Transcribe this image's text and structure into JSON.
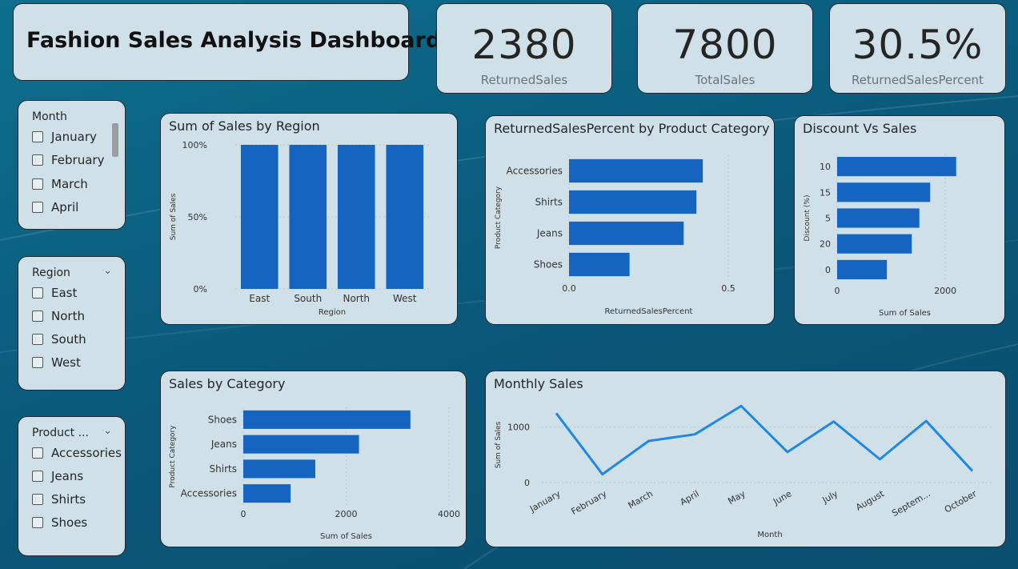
{
  "title": "Fashion Sales Analysis Dashboard",
  "kpis": [
    {
      "value": "2380",
      "label": "ReturnedSales"
    },
    {
      "value": "7800",
      "label": "TotalSales"
    },
    {
      "value": "30.5%",
      "label": "ReturnedSalesPercent"
    }
  ],
  "slicers": {
    "month": {
      "title": "Month",
      "items": [
        "January",
        "February",
        "March",
        "April"
      ]
    },
    "region": {
      "title": "Region",
      "items": [
        "East",
        "North",
        "South",
        "West"
      ]
    },
    "product": {
      "title": "Product ...",
      "items": [
        "Accessories",
        "Jeans",
        "Shirts",
        "Shoes"
      ]
    }
  },
  "colors": {
    "bar": "#1565c0",
    "line": "#1e88e5"
  },
  "chart_data": [
    {
      "id": "region",
      "type": "bar",
      "title": "Sum of Sales by Region",
      "categories": [
        "East",
        "South",
        "North",
        "West"
      ],
      "values": [
        100,
        100,
        100,
        100
      ],
      "yticks": [
        "0%",
        "50%",
        "100%"
      ],
      "ylim": [
        0,
        100
      ],
      "xlabel": "Region",
      "ylabel": "Sum of Sales"
    },
    {
      "id": "returned",
      "type": "bar",
      "orientation": "horizontal",
      "title": "ReturnedSalesPercent by Product Category",
      "categories": [
        "Accessories",
        "Shirts",
        "Jeans",
        "Shoes"
      ],
      "values": [
        0.42,
        0.4,
        0.36,
        0.19
      ],
      "xticks": [
        "0.0",
        "0.5"
      ],
      "xtick_values": [
        0,
        0.5
      ],
      "xlim": [
        0,
        0.5
      ],
      "xlabel": "ReturnedSalesPercent",
      "ylabel": "Product Category"
    },
    {
      "id": "discount",
      "type": "bar",
      "orientation": "horizontal",
      "title": "Discount Vs Sales",
      "categories": [
        "10",
        "15",
        "5",
        "20",
        "0"
      ],
      "values": [
        2200,
        1720,
        1520,
        1380,
        920
      ],
      "xticks": [
        "0",
        "2000"
      ],
      "xtick_values": [
        0,
        2000
      ],
      "xlim": [
        0,
        2500
      ],
      "xlabel": "Sum of Sales",
      "ylabel": "Discount (%)"
    },
    {
      "id": "category",
      "type": "bar",
      "orientation": "horizontal",
      "title": "Sales by Category",
      "categories": [
        "Shoes",
        "Jeans",
        "Shirts",
        "Accessories"
      ],
      "values": [
        3250,
        2250,
        1400,
        920
      ],
      "xticks": [
        "0",
        "2000",
        "4000"
      ],
      "xtick_values": [
        0,
        2000,
        4000
      ],
      "xlim": [
        0,
        4000
      ],
      "xlabel": "Sum of Sales",
      "ylabel": "Product Category"
    },
    {
      "id": "monthly",
      "type": "line",
      "title": "Monthly Sales",
      "categories": [
        "January",
        "February",
        "March",
        "April",
        "May",
        "June",
        "July",
        "August",
        "Septem...",
        "October"
      ],
      "values": [
        1250,
        150,
        750,
        870,
        1380,
        550,
        1100,
        420,
        1110,
        210
      ],
      "yticks": [
        "0",
        "1000"
      ],
      "ytick_values": [
        0,
        1000
      ],
      "ylim": [
        0,
        1500
      ],
      "xlabel": "Month",
      "ylabel": "Sum of Sales"
    }
  ]
}
